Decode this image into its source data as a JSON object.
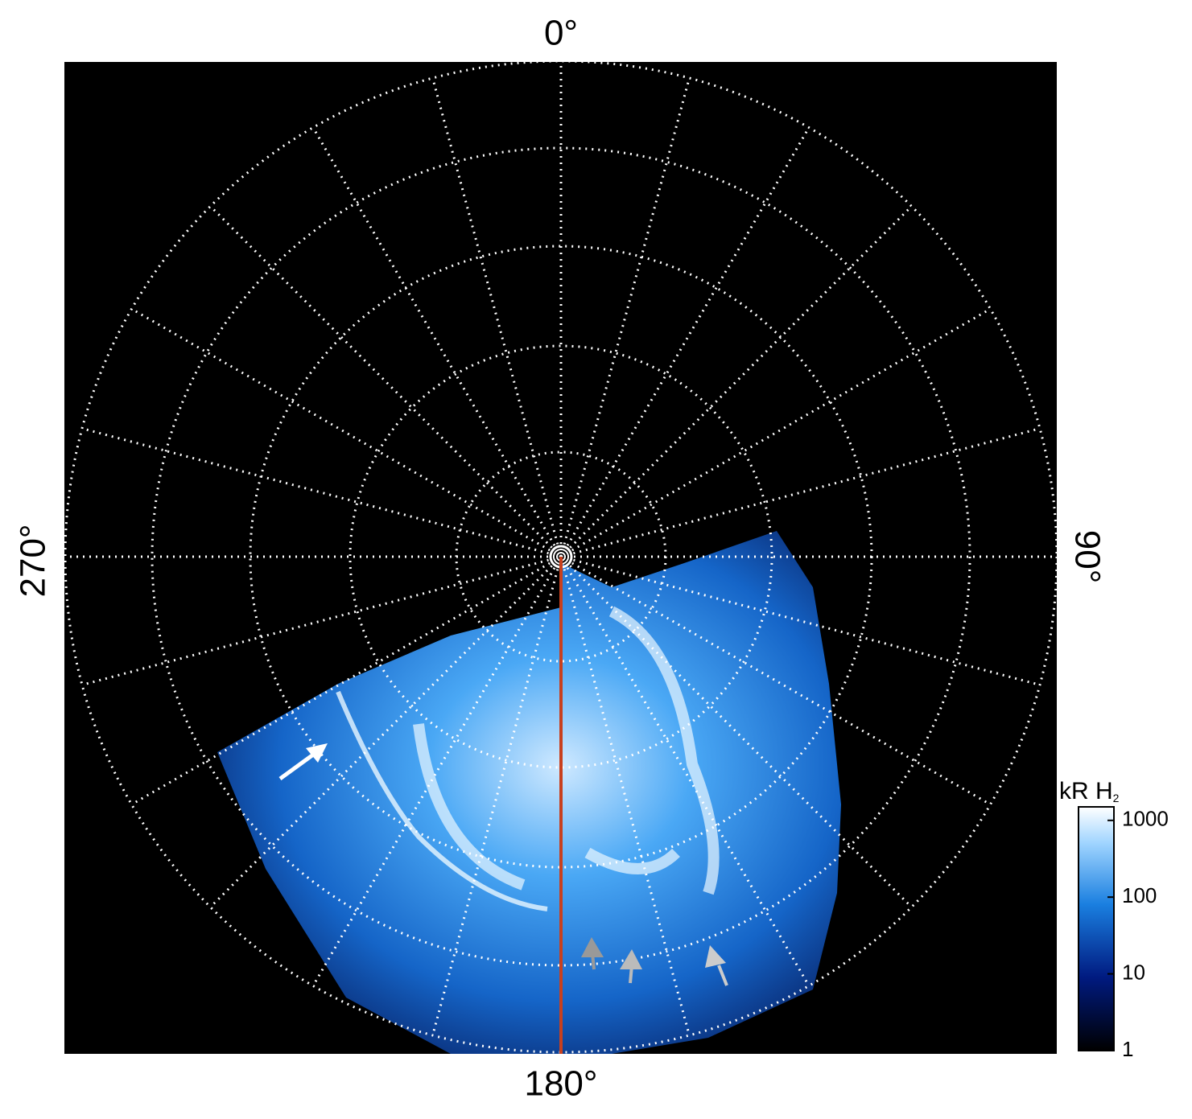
{
  "labels": {
    "top": "0°",
    "right": "90°",
    "bottom": "180°",
    "left": "270°"
  },
  "colorbar": {
    "title": "kR H",
    "title_subscript": "2",
    "lim": [
      1,
      1500
    ],
    "ticks": [
      1,
      10,
      100,
      1000
    ],
    "log": true
  }
}
